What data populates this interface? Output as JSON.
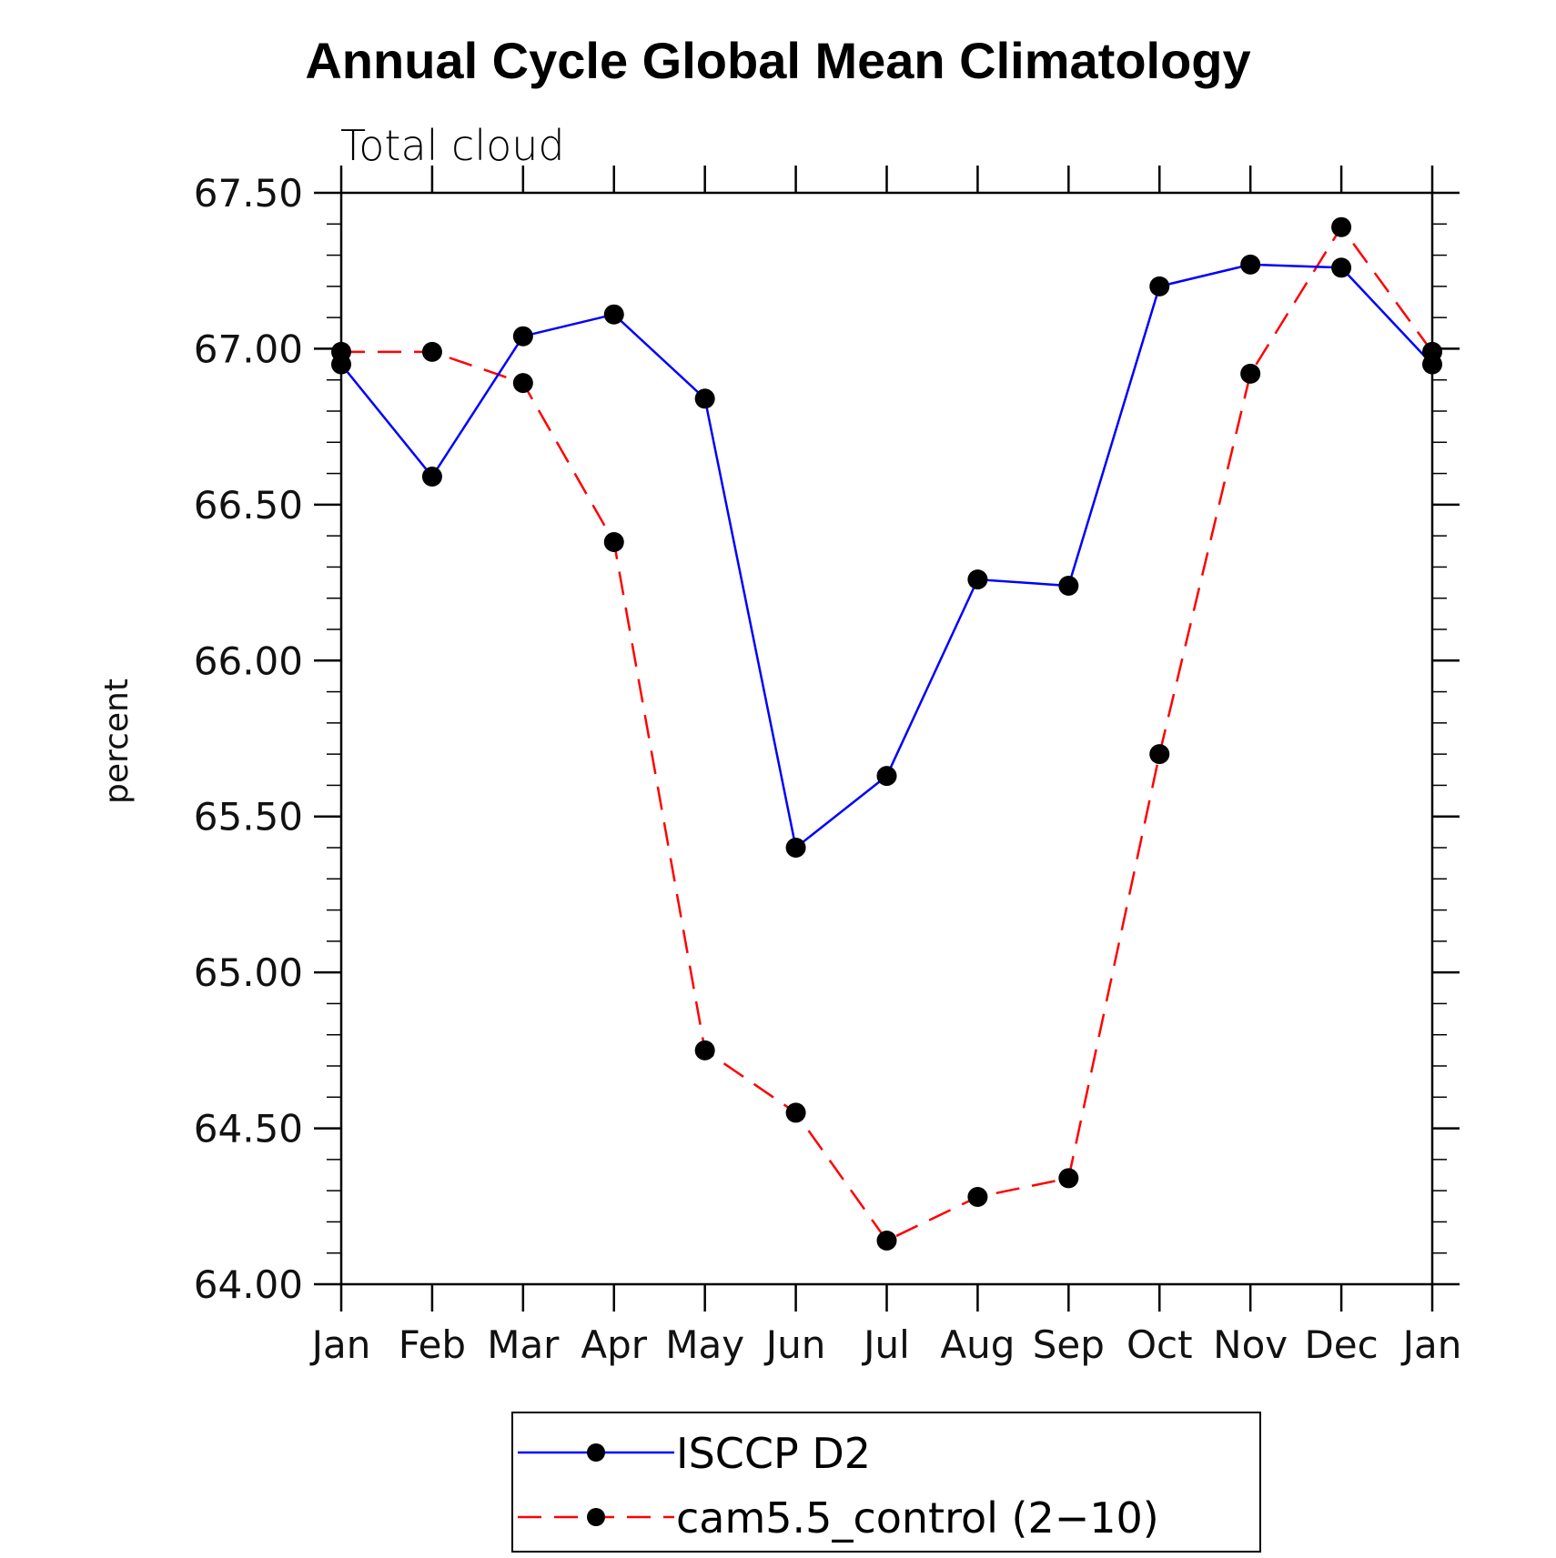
{
  "chart_data": {
    "type": "line",
    "title": "Annual Cycle Global Mean Climatology",
    "subtitle": "Total cloud",
    "ylabel": "percent",
    "xlabel": "",
    "categories": [
      "Jan",
      "Feb",
      "Mar",
      "Apr",
      "May",
      "Jun",
      "Jul",
      "Aug",
      "Sep",
      "Oct",
      "Nov",
      "Dec",
      "Jan"
    ],
    "ylim": [
      64.0,
      67.5
    ],
    "yticks": [
      "64.00",
      "64.50",
      "65.00",
      "65.50",
      "66.00",
      "66.50",
      "67.00",
      "67.50"
    ],
    "series": [
      {
        "name": "ISCCP D2",
        "color": "#0000ff",
        "dash": "solid",
        "marker": "filled-circle",
        "values": [
          66.95,
          66.59,
          67.04,
          67.11,
          66.84,
          65.4,
          65.63,
          66.26,
          66.24,
          67.2,
          67.27,
          67.26,
          66.95
        ]
      },
      {
        "name": "cam5.5_control (2−10)",
        "color": "#ff0000",
        "dash": "dashed",
        "marker": "filled-circle",
        "values": [
          66.99,
          66.99,
          66.89,
          66.38,
          64.75,
          64.55,
          64.14,
          64.28,
          64.34,
          65.7,
          66.92,
          67.39,
          66.99
        ]
      }
    ],
    "grid": false,
    "legend_position": "bottom-center"
  }
}
